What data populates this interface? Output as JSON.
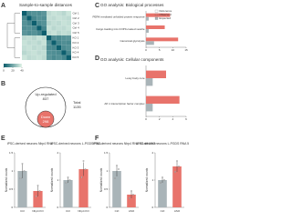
{
  "panels": [
    "A",
    "B",
    "C",
    "D",
    "E",
    "F"
  ],
  "heatmap": {
    "title": "Sample-to-sample distances",
    "rows": [
      "Ctrl 1",
      "Ctrl 2",
      "Ctrl 3",
      "Ctrl 4",
      "Ctrl 5",
      "KO 1",
      "KO 2",
      "KO 3",
      "KO 4",
      "KO 5"
    ],
    "values": [
      [
        0,
        12,
        14,
        13,
        15,
        34,
        36,
        35,
        33,
        37
      ],
      [
        12,
        0,
        11,
        14,
        13,
        35,
        34,
        36,
        35,
        34
      ],
      [
        14,
        11,
        0,
        12,
        14,
        33,
        35,
        34,
        36,
        35
      ],
      [
        13,
        14,
        12,
        0,
        11,
        36,
        33,
        35,
        34,
        36
      ],
      [
        15,
        13,
        14,
        11,
        0,
        34,
        36,
        33,
        35,
        34
      ],
      [
        34,
        35,
        33,
        36,
        34,
        0,
        13,
        12,
        14,
        15
      ],
      [
        36,
        34,
        35,
        33,
        36,
        13,
        0,
        11,
        13,
        12
      ],
      [
        35,
        36,
        34,
        35,
        33,
        12,
        11,
        0,
        12,
        14
      ],
      [
        33,
        35,
        36,
        34,
        35,
        14,
        13,
        12,
        0,
        11
      ],
      [
        37,
        34,
        35,
        36,
        34,
        15,
        12,
        14,
        11,
        0
      ]
    ],
    "scale_lim": [
      0,
      40
    ],
    "scale_ticks": [
      0,
      20,
      40
    ]
  },
  "venn": {
    "up_label": "Up-regulated",
    "up": 837,
    "total_label": "Total",
    "total": 1135,
    "down_label": "Down",
    "down": 298
  },
  "chart_data": [
    {
      "type": "hbar",
      "title": "GO analysis: Biological processes",
      "categories": [
        "PERK-mediated unfolded protein response",
        "Cargo loading into COPII-coated vesicle",
        "Canonical glycolysis"
      ],
      "series": [
        {
          "name": "Observed",
          "color": "#e8736b",
          "values": [
            9,
            7,
            12
          ]
        },
        {
          "name": "Expected",
          "color": "#a9b4b8",
          "values": [
            1,
            1,
            3
          ]
        }
      ],
      "reference": {
        "name": "Reference",
        "color": "#ffffff"
      },
      "xlim": [
        0,
        15
      ],
      "xticks": [
        0,
        5,
        10,
        15
      ]
    },
    {
      "type": "hbar",
      "title": "GO analysis: Cellular components",
      "categories": [
        "Lewy body core",
        "AP-1 transcription factor complex"
      ],
      "series": [
        {
          "name": "Observed",
          "color": "#e8736b",
          "values": [
            3,
            5
          ]
        },
        {
          "name": "Expected",
          "color": "#a9b4b8",
          "values": [
            1,
            1
          ]
        }
      ],
      "xlim": [
        0,
        6
      ],
      "xticks": [
        0,
        2,
        4,
        6
      ]
    },
    {
      "type": "vbar",
      "title": "iPSC-derived neurons Nlrp4 RNA",
      "ylabel": "Normalized counts",
      "categories": [
        "Ctrl",
        "Nlrp4 KO"
      ],
      "colors": [
        "#a9b4b8",
        "#e8736b"
      ],
      "values": [
        1,
        0.45
      ],
      "errors": [
        0.2,
        0.15
      ],
      "points": [
        [
          0.8,
          1.2,
          1.0
        ],
        [
          0.3,
          0.6,
          0.45
        ]
      ],
      "ylim": [
        0,
        1.5
      ],
      "yticks": [
        0,
        0.5,
        1,
        1.5
      ]
    },
    {
      "type": "vbar",
      "title": "iPSC-derived neurons L-PGDS RNA",
      "ylabel": "Normalized counts",
      "categories": [
        "Ctrl",
        "Nlrp4 KO"
      ],
      "colors": [
        "#a9b4b8",
        "#e8736b"
      ],
      "values": [
        1,
        1.4
      ],
      "errors": [
        0.1,
        0.25
      ],
      "points": [
        [
          0.9,
          1.1,
          1.0
        ],
        [
          1.1,
          1.7,
          1.4
        ]
      ],
      "ylim": [
        0,
        2
      ],
      "yticks": [
        0,
        1,
        2
      ]
    },
    {
      "type": "vbar",
      "title": "iPSC-derived neurons Nlrp4 RNA 50 nM ASO",
      "ylabel": "Normalized counts",
      "categories": [
        "Ctrl",
        "ASO"
      ],
      "colors": [
        "#a9b4b8",
        "#e8736b"
      ],
      "values": [
        1,
        0.35
      ],
      "errors": [
        0.15,
        0.1
      ],
      "points": [
        [
          0.8,
          1.15,
          1.05
        ],
        [
          0.25,
          0.45,
          0.35
        ]
      ],
      "ylim": [
        0,
        1.5
      ],
      "yticks": [
        0,
        0.5,
        1,
        1.5
      ]
    },
    {
      "type": "vbar",
      "title": "iPSC-derived neurons L-PGDS RNA 50 nM ASO",
      "ylabel": "Normalized counts",
      "categories": [
        "Ctrl",
        "ASO"
      ],
      "colors": [
        "#a9b4b8",
        "#e8736b"
      ],
      "values": [
        1,
        1.5
      ],
      "errors": [
        0.1,
        0.2
      ],
      "points": [
        [
          0.9,
          1.1,
          1.0
        ],
        [
          1.3,
          1.7,
          1.5
        ]
      ],
      "ylim": [
        0,
        2
      ],
      "yticks": [
        0,
        1,
        2
      ]
    }
  ]
}
